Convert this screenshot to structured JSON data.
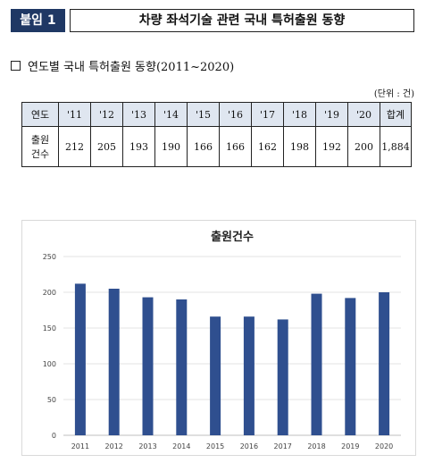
{
  "header": {
    "badge": "붙임 1",
    "title": "차량 좌석기술 관련 국내 특허출원 동향"
  },
  "section": {
    "title": "연도별 국내 특허출원 동향(2011~2020)"
  },
  "table": {
    "unit": "(단위 : 건)",
    "row_header_label": "연도",
    "value_row_label_lines": [
      "출원",
      "건수"
    ],
    "columns": [
      "'11",
      "'12",
      "'13",
      "'14",
      "'15",
      "'16",
      "'17",
      "'18",
      "'19",
      "'20"
    ],
    "total_label": "합계",
    "values": [
      "212",
      "205",
      "193",
      "190",
      "166",
      "166",
      "162",
      "198",
      "192",
      "200"
    ],
    "total_value": "1,884"
  },
  "chart_data": {
    "type": "bar",
    "title": "출원건수",
    "categories": [
      "2011",
      "2012",
      "2013",
      "2014",
      "2015",
      "2016",
      "2017",
      "2018",
      "2019",
      "2020"
    ],
    "values": [
      212,
      205,
      193,
      190,
      166,
      166,
      162,
      198,
      192,
      200
    ],
    "ylim": [
      0,
      250
    ],
    "yticks": [
      0,
      50,
      100,
      150,
      200,
      250
    ],
    "grid": true,
    "bar_color": "#2f4f8f"
  }
}
